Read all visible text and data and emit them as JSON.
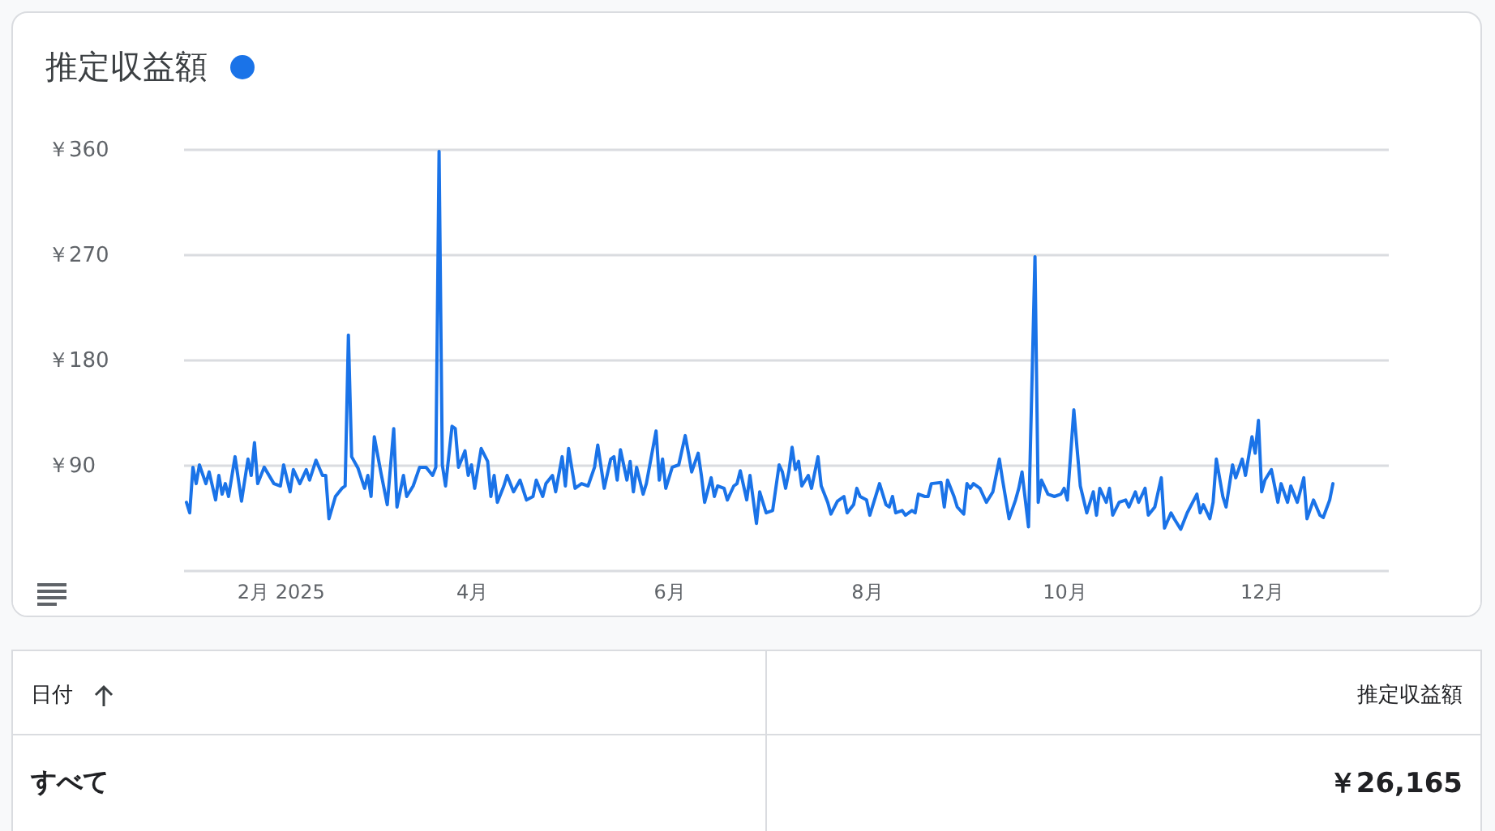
{
  "chart_data": {
    "type": "line",
    "title": "推定収益額",
    "x": [
      "2025-01-03",
      "2025-01-04",
      "2025-01-05",
      "2025-01-06",
      "2025-01-07",
      "2025-01-09",
      "2025-01-10",
      "2025-01-12",
      "2025-01-13",
      "2025-01-14",
      "2025-01-15",
      "2025-01-16",
      "2025-01-18",
      "2025-01-20",
      "2025-01-22",
      "2025-01-23",
      "2025-01-24",
      "2025-01-25",
      "2025-01-27",
      "2025-01-30",
      "2025-02-01",
      "2025-02-02",
      "2025-02-04",
      "2025-02-05",
      "2025-02-07",
      "2025-02-09",
      "2025-02-10",
      "2025-02-12",
      "2025-02-14",
      "2025-02-15",
      "2025-02-16",
      "2025-02-18",
      "2025-02-20",
      "2025-02-21",
      "2025-02-22",
      "2025-02-23",
      "2025-02-25",
      "2025-02-27",
      "2025-02-28",
      "2025-03-01",
      "2025-03-02",
      "2025-03-04",
      "2025-03-06",
      "2025-03-08",
      "2025-03-09",
      "2025-03-11",
      "2025-03-12",
      "2025-03-14",
      "2025-03-16",
      "2025-03-18",
      "2025-03-20",
      "2025-03-21",
      "2025-03-22",
      "2025-03-23",
      "2025-03-24",
      "2025-03-26",
      "2025-03-27",
      "2025-03-28",
      "2025-03-30",
      "2025-03-31",
      "2025-04-01",
      "2025-04-02",
      "2025-04-04",
      "2025-04-06",
      "2025-04-07",
      "2025-04-08",
      "2025-04-09",
      "2025-04-11",
      "2025-04-12",
      "2025-04-14",
      "2025-04-16",
      "2025-04-18",
      "2025-04-20",
      "2025-04-21",
      "2025-04-23",
      "2025-04-24",
      "2025-04-26",
      "2025-04-27",
      "2025-04-29",
      "2025-04-30",
      "2025-05-01",
      "2025-05-03",
      "2025-05-05",
      "2025-05-07",
      "2025-05-09",
      "2025-05-10",
      "2025-05-12",
      "2025-05-14",
      "2025-05-15",
      "2025-05-16",
      "2025-05-17",
      "2025-05-19",
      "2025-05-20",
      "2025-05-21",
      "2025-05-22",
      "2025-05-24",
      "2025-05-25",
      "2025-05-28",
      "2025-05-29",
      "2025-05-30",
      "2025-05-31",
      "2025-06-02",
      "2025-06-04",
      "2025-06-06",
      "2025-06-07",
      "2025-06-08",
      "2025-06-10",
      "2025-06-11",
      "2025-06-12",
      "2025-06-14",
      "2025-06-15",
      "2025-06-16",
      "2025-06-18",
      "2025-06-19",
      "2025-06-21",
      "2025-06-22",
      "2025-06-23",
      "2025-06-25",
      "2025-06-26",
      "2025-06-28",
      "2025-06-29",
      "2025-07-01",
      "2025-07-03",
      "2025-07-05",
      "2025-07-06",
      "2025-07-07",
      "2025-07-08",
      "2025-07-09",
      "2025-07-10",
      "2025-07-11",
      "2025-07-12",
      "2025-07-14",
      "2025-07-15",
      "2025-07-17",
      "2025-07-18",
      "2025-07-20",
      "2025-07-21",
      "2025-07-23",
      "2025-07-25",
      "2025-07-26",
      "2025-07-28",
      "2025-07-29",
      "2025-07-30",
      "2025-08-01",
      "2025-08-02",
      "2025-08-04",
      "2025-08-05",
      "2025-08-07",
      "2025-08-08",
      "2025-08-09",
      "2025-08-10",
      "2025-08-12",
      "2025-08-13",
      "2025-08-15",
      "2025-08-16",
      "2025-08-17",
      "2025-08-19",
      "2025-08-20",
      "2025-08-21",
      "2025-08-24",
      "2025-08-25",
      "2025-08-26",
      "2025-08-28",
      "2025-08-29",
      "2025-08-31",
      "2025-09-01",
      "2025-09-02",
      "2025-09-03",
      "2025-09-05",
      "2025-09-07",
      "2025-09-09",
      "2025-09-11",
      "2025-09-12",
      "2025-09-14",
      "2025-09-16",
      "2025-09-17",
      "2025-09-18",
      "2025-09-20",
      "2025-09-22",
      "2025-09-23",
      "2025-09-24",
      "2025-09-26",
      "2025-09-28",
      "2025-09-30",
      "2025-10-01",
      "2025-10-02",
      "2025-10-04",
      "2025-10-05",
      "2025-10-06",
      "2025-10-08",
      "2025-10-10",
      "2025-10-11",
      "2025-10-12",
      "2025-10-14",
      "2025-10-15",
      "2025-10-16",
      "2025-10-18",
      "2025-10-20",
      "2025-10-21",
      "2025-10-23",
      "2025-10-24",
      "2025-10-26",
      "2025-10-27",
      "2025-10-29",
      "2025-10-31",
      "2025-11-01",
      "2025-11-03",
      "2025-11-04",
      "2025-11-06",
      "2025-11-08",
      "2025-11-11",
      "2025-11-12",
      "2025-11-13",
      "2025-11-15",
      "2025-11-16",
      "2025-11-17",
      "2025-11-19",
      "2025-11-20",
      "2025-11-22",
      "2025-11-23",
      "2025-11-25",
      "2025-11-26",
      "2025-11-28",
      "2025-11-29",
      "2025-11-30",
      "2025-12-01",
      "2025-12-02",
      "2025-12-04",
      "2025-12-06",
      "2025-12-07",
      "2025-12-09",
      "2025-12-10",
      "2025-12-12",
      "2025-12-14",
      "2025-12-15",
      "2025-12-17",
      "2025-12-19",
      "2025-12-20",
      "2025-12-22",
      "2025-12-23"
    ],
    "series": [
      {
        "color": "#1a73e8",
        "values": [
          58,
          49,
          88,
          74,
          90,
          74,
          84,
          60,
          81,
          65,
          74,
          63,
          97,
          59,
          95,
          81,
          109,
          74,
          88,
          74,
          72,
          90,
          67,
          86,
          74,
          86,
          77,
          94,
          81,
          81,
          44,
          63,
          70,
          72,
          201,
          97,
          87,
          70,
          81,
          63,
          114,
          84,
          56,
          121,
          54,
          81,
          63,
          72,
          88,
          88,
          81,
          88,
          358,
          90,
          72,
          123,
          121,
          88,
          102,
          81,
          90,
          70,
          104,
          93,
          63,
          81,
          58,
          72,
          81,
          67,
          77,
          60,
          63,
          77,
          63,
          74,
          81,
          67,
          97,
          72,
          104,
          70,
          74,
          72,
          88,
          107,
          70,
          95,
          97,
          77,
          103,
          77,
          93,
          67,
          88,
          65,
          74,
          119,
          77,
          95,
          70,
          88,
          90,
          115,
          100,
          84,
          100,
          81,
          58,
          79,
          63,
          72,
          70,
          60,
          72,
          74,
          85,
          60,
          81,
          40,
          67,
          49,
          51,
          90,
          84,
          70,
          84,
          105,
          86,
          93,
          72,
          81,
          70,
          97,
          72,
          58,
          48,
          59,
          63,
          49,
          56,
          70,
          63,
          60,
          47,
          65,
          74,
          56,
          54,
          63,
          49,
          51,
          47,
          51,
          49,
          65,
          63,
          63,
          74,
          75,
          54,
          77,
          63,
          54,
          48,
          74,
          70,
          74,
          70,
          58,
          67,
          95,
          77,
          44,
          60,
          70,
          84,
          37,
          268,
          58,
          77,
          65,
          63,
          65,
          70,
          60,
          137,
          104,
          72,
          49,
          67,
          47,
          70,
          58,
          70,
          47,
          58,
          60,
          54,
          67,
          58,
          70,
          47,
          54,
          79,
          36,
          49,
          44,
          35,
          49,
          65,
          49,
          56,
          44,
          58,
          95,
          63,
          54,
          90,
          79,
          95,
          81,
          114,
          100,
          128,
          67,
          77,
          86,
          58,
          74,
          58,
          72,
          58,
          79,
          44,
          60,
          47,
          45,
          60,
          74
        ]
      }
    ],
    "xlim": [
      "2025-01-02",
      "2026-01-09"
    ],
    "xticks": [
      {
        "value": "2025-02-01",
        "label": "2月 2025"
      },
      {
        "value": "2025-04-01",
        "label": "4月"
      },
      {
        "value": "2025-06-01",
        "label": "6月"
      },
      {
        "value": "2025-08-01",
        "label": "8月"
      },
      {
        "value": "2025-10-01",
        "label": "10月"
      },
      {
        "value": "2025-12-01",
        "label": "12月"
      }
    ],
    "ylim": [
      0,
      360
    ],
    "yticks": [
      {
        "value": 0,
        "label": null
      },
      {
        "value": 90,
        "label": "￥90"
      },
      {
        "value": 180,
        "label": "￥180"
      },
      {
        "value": 270,
        "label": "￥270"
      },
      {
        "value": 360,
        "label": "￥360"
      }
    ],
    "grid": "y",
    "legend": false,
    "marker": "none",
    "line_style": "solid",
    "annotations": [
      "日付",
      "推定収益額",
      "すべて",
      "￥26,165"
    ]
  }
}
